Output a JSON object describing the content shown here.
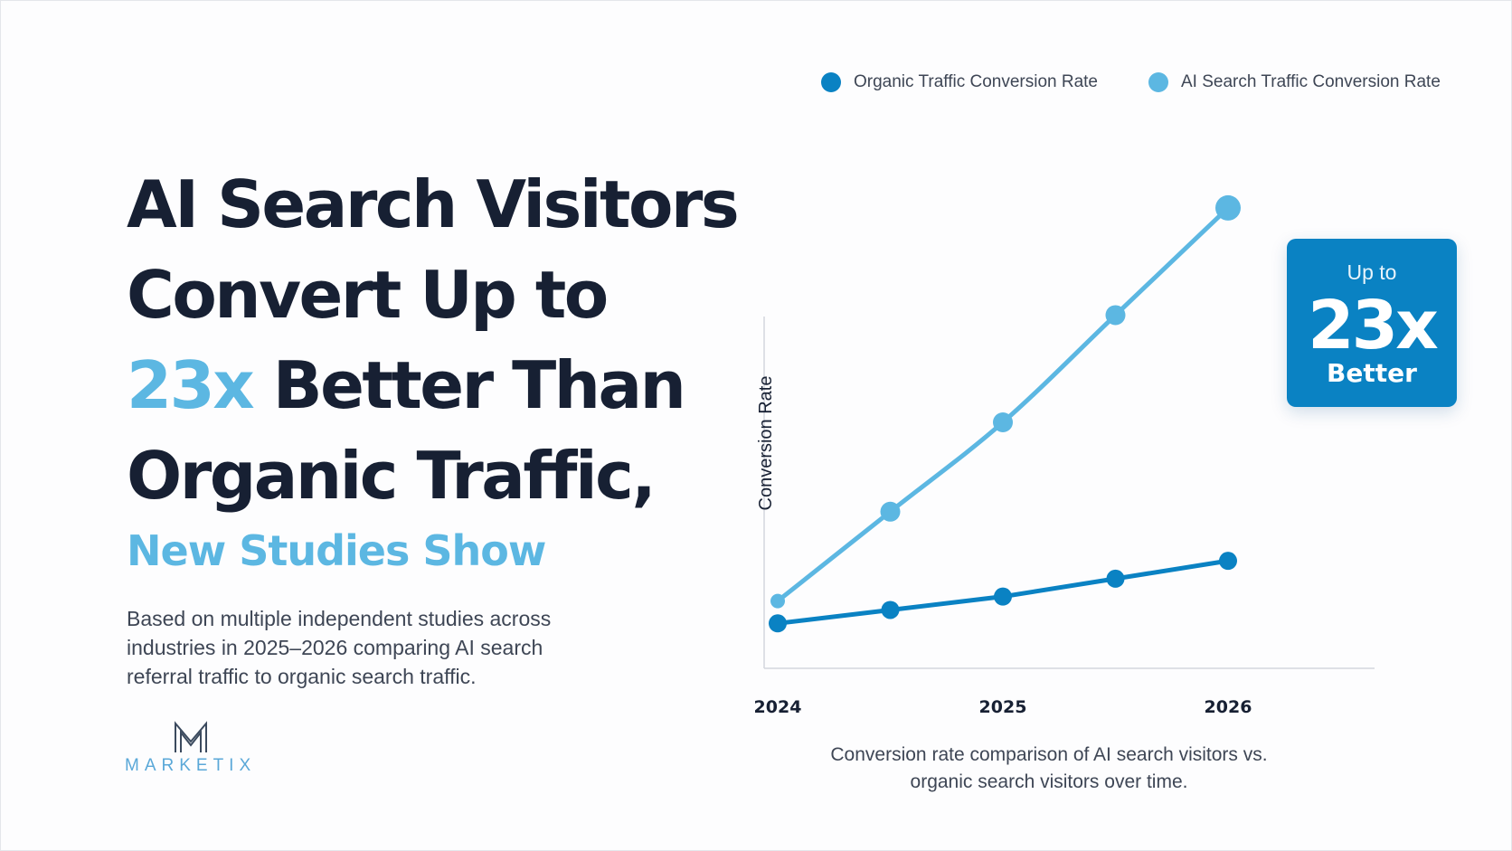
{
  "headline": {
    "line1": "AI Search Visitors",
    "line2": "Convert Up to",
    "line3_highlight": "23x",
    "line3_rest": "Better Than",
    "line4": "Organic Traffic,"
  },
  "subheadline": "New Studies Show",
  "description": {
    "line1": "Based on multiple independent studies across",
    "line2": "industries in 2025–2026 comparing AI search",
    "line3": "referral traffic to organic search traffic."
  },
  "logo": {
    "icon": "m-monogram-icon",
    "text": "MARKETIX"
  },
  "callout": {
    "prefix": "Up to",
    "value": "23x",
    "suffix": "Better"
  },
  "caption": {
    "line1": "Conversion rate comparison of AI search visitors vs.",
    "line2": "organic search visitors over time."
  },
  "colors": {
    "organic": "#0a82c3",
    "ai_search": "#5cb7e2",
    "headline": "#172033",
    "accent": "#5cb7e2"
  },
  "chart_data": {
    "type": "line",
    "title": "",
    "xlabel": "",
    "ylabel": "Conversion Rate",
    "x": [
      2024,
      2024.5,
      2025,
      2025.5,
      2026
    ],
    "x_tick_labels": [
      "2024",
      "2025",
      "2026"
    ],
    "x_tick_values": [
      2024,
      2025,
      2026
    ],
    "y_scale": "unlabeled (no tick values shown)",
    "ylim": [
      0,
      10
    ],
    "grid": false,
    "legend_position": "top",
    "series": [
      {
        "name": "Organic Traffic Conversion Rate",
        "color": "#0a82c3",
        "values": [
          0.5,
          0.8,
          1.1,
          1.5,
          1.9
        ]
      },
      {
        "name": "AI Search Traffic Conversion Rate",
        "color": "#5cb7e2",
        "values": [
          1.0,
          3.0,
          5.0,
          7.4,
          9.8
        ]
      }
    ]
  }
}
